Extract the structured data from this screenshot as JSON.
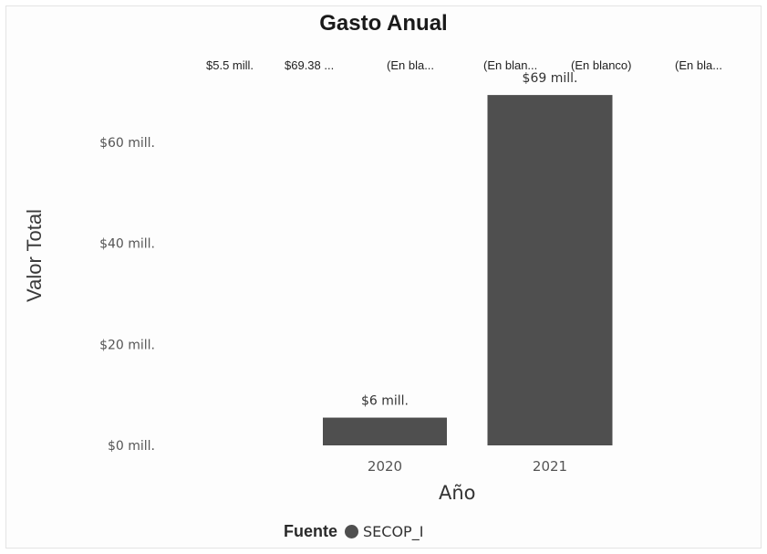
{
  "chart_data": {
    "type": "bar",
    "title": "Gasto Anual",
    "xlabel": "Año",
    "ylabel": "Valor Total",
    "categories": [
      "2020",
      "2021"
    ],
    "series": [
      {
        "name": "SECOP_I",
        "values": [
          5.5,
          69.38
        ]
      }
    ],
    "data_labels": [
      "$6 mill.",
      "$69 mill."
    ],
    "y_ticks": [
      0,
      20,
      40,
      60
    ],
    "y_tick_labels": [
      "$0 mill.",
      "$20 mill.",
      "$40 mill.",
      "$60 mill."
    ],
    "ylim": [
      0,
      70
    ],
    "grid": false,
    "legend_title": "Fuente",
    "legend_position": "bottom",
    "bar_color": "#4f4f4f",
    "top_labels": [
      "$5.5 mill.",
      "$69.38 ...",
      "(En bla...",
      "(En blan...",
      "(En blanco)",
      "(En bla..."
    ]
  }
}
